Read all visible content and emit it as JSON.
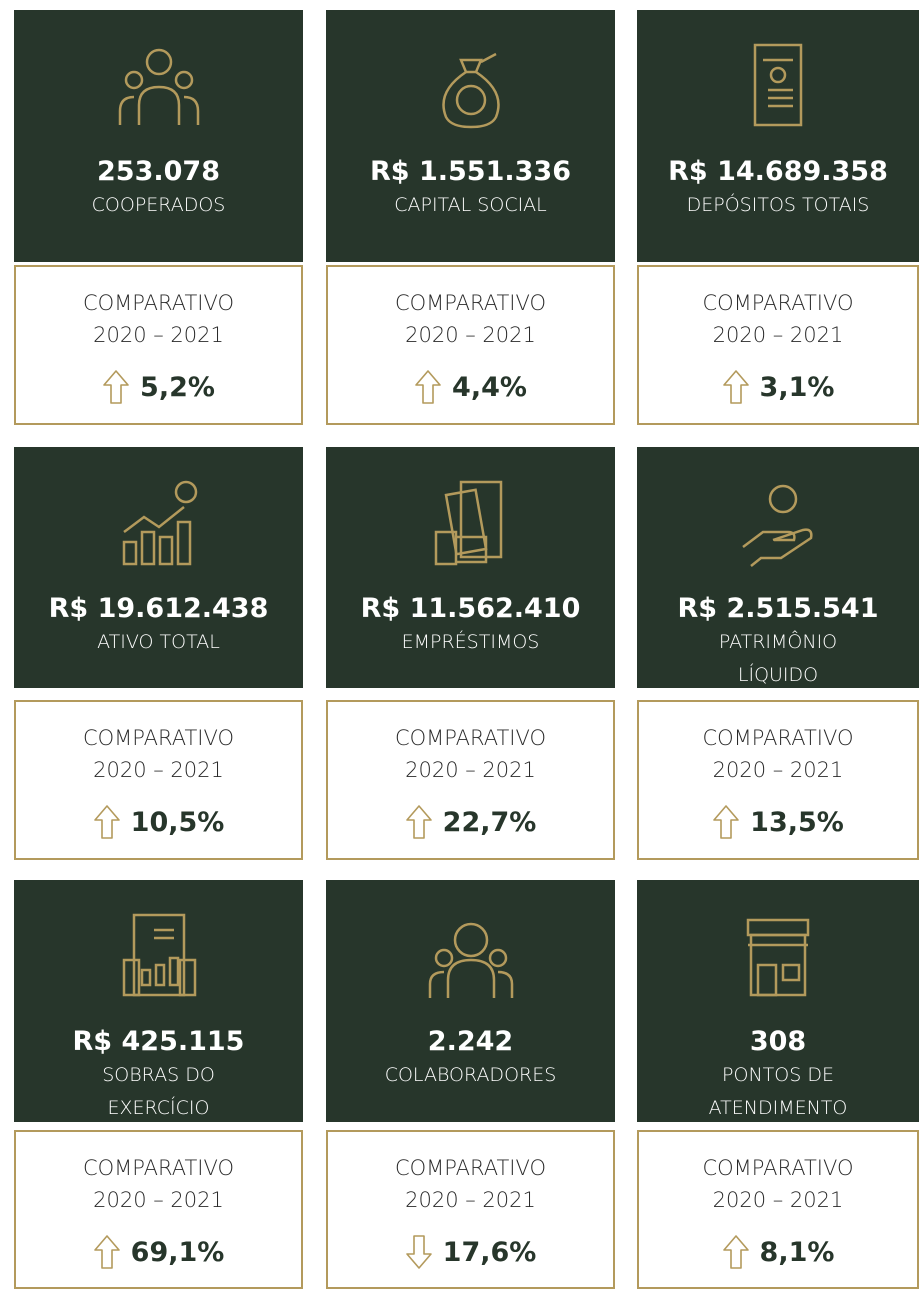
{
  "cards": [
    {
      "value": "253.078",
      "label": [
        "COOPERADOS"
      ],
      "comparison_title": "COMPARATIVO",
      "period": "2020 – 2021",
      "change": "5,2%",
      "direction": "up"
    },
    {
      "value": "R$ 1.551.336",
      "label": [
        "CAPITAL SOCIAL"
      ],
      "comparison_title": "COMPARATIVO",
      "period": "2020 – 2021",
      "change": "4,4%",
      "direction": "up"
    },
    {
      "value": "R$ 14.689.358",
      "label": [
        "DEPÓSITOS TOTAIS"
      ],
      "comparison_title": "COMPARATIVO",
      "period": "2020 – 2021",
      "change": "3,1%",
      "direction": "up"
    },
    {
      "value": "R$ 19.612.438",
      "label": [
        "ATIVO TOTAL"
      ],
      "comparison_title": "COMPARATIVO",
      "period": "2020 – 2021",
      "change": "10,5%",
      "direction": "up"
    },
    {
      "value": "R$ 11.562.410",
      "label": [
        "EMPRÉSTIMOS"
      ],
      "comparison_title": "COMPARATIVO",
      "period": "2020 – 2021",
      "change": "22,7%",
      "direction": "up"
    },
    {
      "value": "R$ 2.515.541",
      "label": [
        "PATRIMÔNIO",
        "LÍQUIDO"
      ],
      "comparison_title": "COMPARATIVO",
      "period": "2020 – 2021",
      "change": "13,5%",
      "direction": "up"
    },
    {
      "value": "R$ 425.115",
      "label": [
        "SOBRAS DO",
        "EXERCÍCIO"
      ],
      "comparison_title": "COMPARATIVO",
      "period": "2020 – 2021",
      "change": "69,1%",
      "direction": "up"
    },
    {
      "value": "2.242",
      "label": [
        "COLABORADORES"
      ],
      "comparison_title": "COMPARATIVO",
      "period": "2020 – 2021",
      "change": "17,6%",
      "direction": "down"
    },
    {
      "value": "308",
      "label": [
        "PONTOS DE",
        "ATENDIMENTO"
      ],
      "comparison_title": "COMPARATIVO",
      "period": "2020 – 2021",
      "change": "8,1%",
      "direction": "up"
    }
  ]
}
